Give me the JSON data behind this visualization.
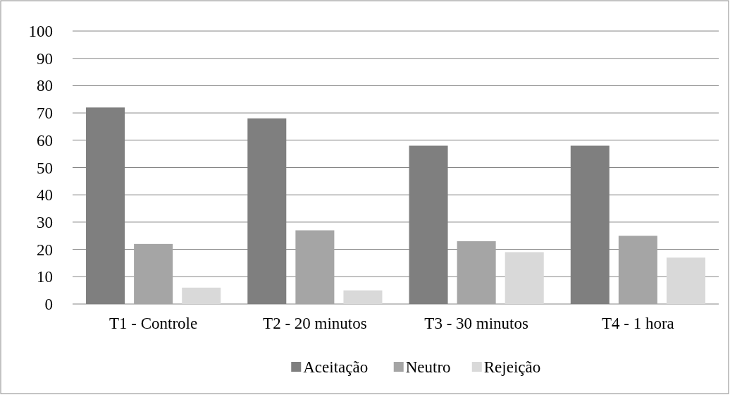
{
  "chart_data": {
    "type": "bar",
    "categories": [
      "T1 - Controle",
      "T2 - 20 minutos",
      "T3 - 30 minutos",
      "T4 - 1 hora"
    ],
    "series": [
      {
        "name": "Aceitação",
        "color": "#7f7f7f",
        "values": [
          72,
          68,
          58,
          58
        ]
      },
      {
        "name": "Neutro",
        "color": "#a5a5a5",
        "values": [
          22,
          27,
          23,
          25
        ]
      },
      {
        "name": "Rejeição",
        "color": "#d9d9d9",
        "values": [
          6,
          5,
          19,
          17
        ]
      }
    ],
    "ylim": [
      0,
      100
    ],
    "yticks": [
      0,
      10,
      20,
      30,
      40,
      50,
      60,
      70,
      80,
      90,
      100
    ],
    "grid": "y",
    "legend": "bottom"
  }
}
